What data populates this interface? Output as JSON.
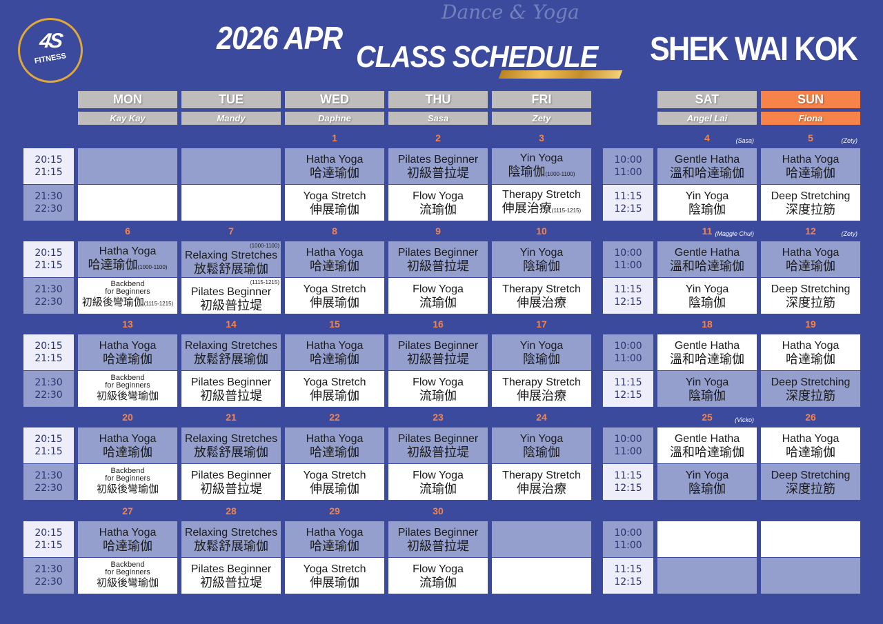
{
  "branding": {
    "logo_mark": "4S",
    "logo_text": "FITNESS",
    "year_month": "2026 APR",
    "title": "CLASS SCHEDULE",
    "script_text": "Dance & Yoga",
    "location": "SHEK WAI KOK"
  },
  "colors": {
    "background": "#3b4a9c",
    "accent": "#f5834a",
    "header_gray": "#bfbcbc",
    "cell_blue": "#949fce",
    "cell_white": "#ffffff",
    "time_light": "#eeeefa"
  },
  "days": [
    {
      "day": "MON",
      "instructor": "Kay Kay"
    },
    {
      "day": "TUE",
      "instructor": "Mandy"
    },
    {
      "day": "WED",
      "instructor": "Daphne"
    },
    {
      "day": "THU",
      "instructor": "Sasa"
    },
    {
      "day": "FRI",
      "instructor": "Zety"
    },
    {
      "day": "SAT",
      "instructor": "Angel Lai"
    },
    {
      "day": "SUN",
      "instructor": "Fiona",
      "highlight": true
    }
  ],
  "weekday_times": [
    [
      "20:15",
      "21:15"
    ],
    [
      "21:30",
      "22:30"
    ]
  ],
  "weekend_times": [
    [
      "10:00",
      "11:00"
    ],
    [
      "11:15",
      "12:15"
    ]
  ],
  "weeks": [
    {
      "dates": [
        "",
        "",
        "1",
        "2",
        "3",
        "4",
        "5"
      ],
      "notes": [
        "",
        "",
        "",
        "",
        "",
        "(Sasa)",
        "(Zety)"
      ],
      "weekend_pattern": "mw",
      "slots": [
        [
          null,
          null
        ],
        [
          null,
          null
        ],
        [
          {
            "en": "Hatha Yoga",
            "zh": "哈達瑜伽"
          },
          {
            "en": "Yoga Stretch",
            "zh": "伸展瑜伽"
          }
        ],
        [
          {
            "en": "Pilates Beginner",
            "zh": "初級普拉堤"
          },
          {
            "en": "Flow Yoga",
            "zh": "流瑜伽"
          }
        ],
        [
          {
            "en": "Yin Yoga",
            "zh": "陰瑜伽",
            "time": "(1000-1100)"
          },
          {
            "en": "Therapy Stretch",
            "zh": "伸展治療",
            "time": "(1115-1215)"
          }
        ],
        [
          {
            "en": "Gentle Hatha",
            "zh": "溫和哈達瑜伽"
          },
          {
            "en": "Yin Yoga",
            "zh": "陰瑜伽"
          }
        ],
        [
          {
            "en": "Hatha Yoga",
            "zh": "哈達瑜伽"
          },
          {
            "en": "Deep Stretching",
            "zh": "深度拉筋"
          }
        ]
      ]
    },
    {
      "dates": [
        "6",
        "7",
        "8",
        "9",
        "10",
        "11",
        "12"
      ],
      "notes": [
        "",
        "",
        "",
        "",
        "",
        "(Maggie Chui)",
        "(Zety)"
      ],
      "weekend_pattern": "mw",
      "slots": [
        [
          {
            "en": "Hatha Yoga",
            "zh": "哈達瑜伽",
            "time": "(1000-1100)"
          },
          {
            "en": "Backbend for Beginners",
            "small": true,
            "zh": "初級後彎瑜伽",
            "time": "(1115-1215)"
          }
        ],
        [
          {
            "en": "Relaxing Stretches",
            "zh": "放鬆舒展瑜伽",
            "time_top": "(1000-1100)"
          },
          {
            "en": "Pilates Beginner",
            "zh": "初級普拉堤",
            "time_top": "(1115-1215)"
          }
        ],
        [
          {
            "en": "Hatha Yoga",
            "zh": "哈達瑜伽"
          },
          {
            "en": "Yoga Stretch",
            "zh": "伸展瑜伽"
          }
        ],
        [
          {
            "en": "Pilates Beginner",
            "zh": "初級普拉堤"
          },
          {
            "en": "Flow Yoga",
            "zh": "流瑜伽"
          }
        ],
        [
          {
            "en": "Yin Yoga",
            "zh": "陰瑜伽"
          },
          {
            "en": "Therapy Stretch",
            "zh": "伸展治療"
          }
        ],
        [
          {
            "en": "Gentle Hatha",
            "zh": "溫和哈達瑜伽"
          },
          {
            "en": "Yin Yoga",
            "zh": "陰瑜伽"
          }
        ],
        [
          {
            "en": "Hatha Yoga",
            "zh": "哈達瑜伽"
          },
          {
            "en": "Deep Stretching",
            "zh": "深度拉筋"
          }
        ]
      ]
    },
    {
      "dates": [
        "13",
        "14",
        "15",
        "16",
        "17",
        "18",
        "19"
      ],
      "notes": [
        "",
        "",
        "",
        "",
        "",
        "",
        ""
      ],
      "weekend_pattern": "wm",
      "slots": [
        [
          {
            "en": "Hatha Yoga",
            "zh": "哈達瑜伽"
          },
          {
            "en": "Backbend for Beginners",
            "small": true,
            "zh": "初級後彎瑜伽"
          }
        ],
        [
          {
            "en": "Relaxing Stretches",
            "zh": "放鬆舒展瑜伽"
          },
          {
            "en": "Pilates Beginner",
            "zh": "初級普拉堤"
          }
        ],
        [
          {
            "en": "Hatha Yoga",
            "zh": "哈達瑜伽"
          },
          {
            "en": "Yoga Stretch",
            "zh": "伸展瑜伽"
          }
        ],
        [
          {
            "en": "Pilates Beginner",
            "zh": "初級普拉堤"
          },
          {
            "en": "Flow Yoga",
            "zh": "流瑜伽"
          }
        ],
        [
          {
            "en": "Yin Yoga",
            "zh": "陰瑜伽"
          },
          {
            "en": "Therapy Stretch",
            "zh": "伸展治療"
          }
        ],
        [
          {
            "en": "Gentle Hatha",
            "zh": "溫和哈達瑜伽"
          },
          {
            "en": "Yin Yoga",
            "zh": "陰瑜伽"
          }
        ],
        [
          {
            "en": "Hatha Yoga",
            "zh": "哈達瑜伽"
          },
          {
            "en": "Deep Stretching",
            "zh": "深度拉筋"
          }
        ]
      ]
    },
    {
      "dates": [
        "20",
        "21",
        "22",
        "23",
        "24",
        "25",
        "26"
      ],
      "notes": [
        "",
        "",
        "",
        "",
        "",
        "(Vicko)",
        ""
      ],
      "weekend_pattern": "wm",
      "slots": [
        [
          {
            "en": "Hatha Yoga",
            "zh": "哈達瑜伽"
          },
          {
            "en": "Backbend for Beginners",
            "small": true,
            "zh": "初級後彎瑜伽"
          }
        ],
        [
          {
            "en": "Relaxing Stretches",
            "zh": "放鬆舒展瑜伽"
          },
          {
            "en": "Pilates Beginner",
            "zh": "初級普拉堤"
          }
        ],
        [
          {
            "en": "Hatha Yoga",
            "zh": "哈達瑜伽"
          },
          {
            "en": "Yoga Stretch",
            "zh": "伸展瑜伽"
          }
        ],
        [
          {
            "en": "Pilates Beginner",
            "zh": "初級普拉堤"
          },
          {
            "en": "Flow Yoga",
            "zh": "流瑜伽"
          }
        ],
        [
          {
            "en": "Yin Yoga",
            "zh": "陰瑜伽"
          },
          {
            "en": "Therapy Stretch",
            "zh": "伸展治療"
          }
        ],
        [
          {
            "en": "Gentle Hatha",
            "zh": "溫和哈達瑜伽"
          },
          {
            "en": "Yin Yoga",
            "zh": "陰瑜伽"
          }
        ],
        [
          {
            "en": "Hatha Yoga",
            "zh": "哈達瑜伽"
          },
          {
            "en": "Deep Stretching",
            "zh": "深度拉筋"
          }
        ]
      ]
    },
    {
      "dates": [
        "27",
        "28",
        "29",
        "30",
        "",
        "",
        ""
      ],
      "notes": [
        "",
        "",
        "",
        "",
        "",
        "",
        ""
      ],
      "weekend_pattern": "wm",
      "slots": [
        [
          {
            "en": "Hatha Yoga",
            "zh": "哈達瑜伽"
          },
          {
            "en": "Backbend for Beginners",
            "small": true,
            "zh": "初級後彎瑜伽"
          }
        ],
        [
          {
            "en": "Relaxing Stretches",
            "zh": "放鬆舒展瑜伽"
          },
          {
            "en": "Pilates Beginner",
            "zh": "初級普拉堤"
          }
        ],
        [
          {
            "en": "Hatha Yoga",
            "zh": "哈達瑜伽"
          },
          {
            "en": "Yoga Stretch",
            "zh": "伸展瑜伽"
          }
        ],
        [
          {
            "en": "Pilates Beginner",
            "zh": "初級普拉堤"
          },
          {
            "en": "Flow Yoga",
            "zh": "流瑜伽"
          }
        ],
        [
          null,
          null
        ],
        [
          null,
          null
        ],
        [
          null,
          null
        ]
      ]
    }
  ]
}
